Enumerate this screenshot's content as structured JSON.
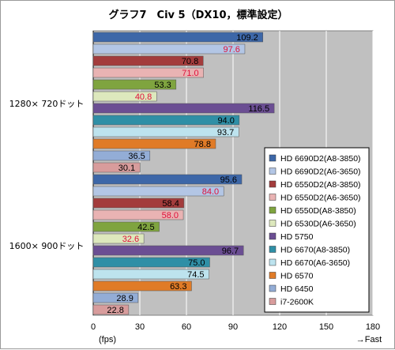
{
  "chart_data": {
    "type": "bar",
    "orientation": "horizontal",
    "title": "グラフ7　Civ 5（DX10，標準設定）",
    "xlabel": "(fps)",
    "direction_note": "→Fast",
    "xlim": [
      0,
      180
    ],
    "xticks": [
      "0",
      "30",
      "60",
      "90",
      "120",
      "150",
      "180"
    ],
    "grid": true,
    "legend_position": "right",
    "categories": [
      "1280× 720ドット",
      "1600× 900ドット"
    ],
    "series": [
      {
        "name": "HD 6690D2(A8-3850)",
        "color": "#3d67a8",
        "values": [
          109.2,
          95.6
        ],
        "label_color": "#000000"
      },
      {
        "name": "HD 6690D2(A6-3650)",
        "color": "#b3c6e5",
        "values": [
          97.6,
          84.0
        ],
        "label_color": "#e0103a"
      },
      {
        "name": "HD 6550D2(A8-3850)",
        "color": "#a33c3c",
        "values": [
          70.8,
          58.4
        ],
        "label_color": "#000000"
      },
      {
        "name": "HD 6550D2(A6-3650)",
        "color": "#e9b3b3",
        "values": [
          71.0,
          58.0
        ],
        "label_color": "#e0103a"
      },
      {
        "name": "HD 6550D(A8-3850)",
        "color": "#7fa43f",
        "values": [
          53.3,
          42.5
        ],
        "label_color": "#000000"
      },
      {
        "name": "HD 6530D(A6-3650)",
        "color": "#dde8bd",
        "values": [
          40.8,
          32.6
        ],
        "label_color": "#e0103a"
      },
      {
        "name": "HD 5750",
        "color": "#6b4e93",
        "values": [
          116.5,
          96.7
        ],
        "label_color": "#000000"
      },
      {
        "name": "HD 6670(A8-3850)",
        "color": "#2f8fa6",
        "values": [
          94.0,
          75.0
        ],
        "label_color": "#000000"
      },
      {
        "name": "HD 6670(A6-3650)",
        "color": "#bde3ee",
        "values": [
          93.7,
          74.5
        ],
        "label_color": "#000000"
      },
      {
        "name": "HD 6570",
        "color": "#e07b27",
        "values": [
          78.8,
          63.3
        ],
        "label_color": "#000000"
      },
      {
        "name": "HD 6450",
        "color": "#93add6",
        "values": [
          36.5,
          28.9
        ],
        "label_color": "#000000"
      },
      {
        "name": "i7-2600K",
        "color": "#d89c9c",
        "values": [
          30.1,
          22.8
        ],
        "label_color": "#000000"
      }
    ]
  }
}
